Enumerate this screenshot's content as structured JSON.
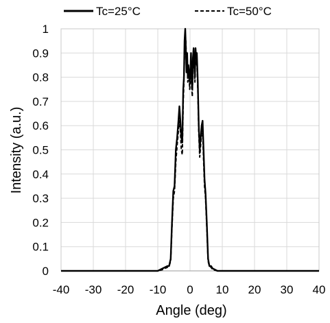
{
  "chart_data": {
    "type": "line",
    "title": "",
    "xlabel": "Angle  (deg)",
    "ylabel": "Intensity  (a.u.)",
    "xlim": [
      -40,
      40
    ],
    "ylim": [
      0,
      1
    ],
    "xticks": [
      -40,
      -30,
      -20,
      -10,
      0,
      10,
      20,
      30,
      40
    ],
    "yticks": [
      0,
      0.1,
      0.2,
      0.3,
      0.4,
      0.5,
      0.6,
      0.7,
      0.8,
      0.9,
      1
    ],
    "ytick_labels": [
      "0",
      "0.1",
      "0.2",
      "0.3",
      "0.4",
      "0.5",
      "0.6",
      "0.7",
      "0.8",
      "0.9",
      "1"
    ],
    "grid": true,
    "legend_position": "top",
    "series": [
      {
        "name": "Tc=25°C",
        "style": "solid",
        "color": "#000000",
        "x": [
          -40,
          -10,
          -8.5,
          -7,
          -6.5,
          -6,
          -5.6,
          -5.2,
          -4.8,
          -4.4,
          -4,
          -3.6,
          -3.3,
          -3.0,
          -2.7,
          -2.4,
          -2.1,
          -1.9,
          -1.7,
          -1.5,
          -1.3,
          -1.1,
          -0.9,
          -0.7,
          -0.5,
          -0.3,
          -0.1,
          0.1,
          0.3,
          0.5,
          0.7,
          0.9,
          1.1,
          1.3,
          1.5,
          1.7,
          1.9,
          2.1,
          2.4,
          2.7,
          3.0,
          3.3,
          3.6,
          3.9,
          4.2,
          4.5,
          4.8,
          5.2,
          5.6,
          6.0,
          6.5,
          7.0,
          8.5,
          10,
          40
        ],
        "y": [
          0,
          0,
          0.01,
          0.02,
          0.02,
          0.05,
          0.2,
          0.33,
          0.35,
          0.5,
          0.55,
          0.62,
          0.68,
          0.62,
          0.55,
          0.53,
          0.75,
          0.8,
          0.95,
          1.0,
          0.92,
          0.82,
          0.9,
          0.8,
          0.85,
          0.82,
          0.78,
          0.82,
          0.9,
          0.78,
          0.75,
          0.88,
          0.92,
          0.86,
          0.8,
          0.92,
          0.88,
          0.9,
          0.78,
          0.6,
          0.5,
          0.55,
          0.6,
          0.62,
          0.5,
          0.38,
          0.32,
          0.2,
          0.05,
          0.02,
          0.02,
          0.01,
          0,
          0,
          0
        ]
      },
      {
        "name": "Tc=50°C",
        "style": "dashed",
        "color": "#000000",
        "x": [
          -40,
          -10,
          -8.5,
          -7,
          -6.5,
          -6,
          -5.6,
          -5.2,
          -4.8,
          -4.4,
          -4,
          -3.6,
          -3.3,
          -3.0,
          -2.7,
          -2.4,
          -2.1,
          -1.9,
          -1.7,
          -1.5,
          -1.3,
          -1.1,
          -0.9,
          -0.7,
          -0.5,
          -0.3,
          -0.1,
          0.1,
          0.3,
          0.5,
          0.7,
          0.9,
          1.1,
          1.3,
          1.5,
          1.7,
          1.9,
          2.1,
          2.4,
          2.7,
          3.0,
          3.3,
          3.6,
          3.9,
          4.2,
          4.5,
          4.8,
          5.2,
          5.6,
          6.0,
          6.5,
          7.0,
          8.5,
          10,
          40
        ],
        "y": [
          0,
          0,
          0.005,
          0.015,
          0.02,
          0.04,
          0.18,
          0.3,
          0.33,
          0.45,
          0.52,
          0.58,
          0.62,
          0.58,
          0.5,
          0.48,
          0.7,
          0.78,
          0.92,
          0.98,
          0.95,
          0.85,
          0.88,
          0.78,
          0.82,
          0.8,
          0.75,
          0.8,
          0.88,
          0.76,
          0.72,
          0.85,
          0.9,
          0.84,
          0.78,
          0.9,
          0.85,
          0.87,
          0.75,
          0.57,
          0.47,
          0.52,
          0.57,
          0.58,
          0.46,
          0.35,
          0.3,
          0.18,
          0.04,
          0.02,
          0.015,
          0.005,
          0,
          0,
          0
        ]
      }
    ]
  }
}
